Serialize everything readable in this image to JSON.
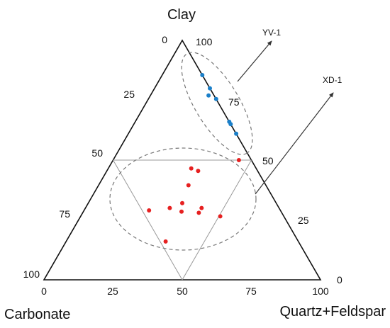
{
  "chart_data": {
    "type": "scatter",
    "subtype": "ternary",
    "vertices": {
      "top": "Clay",
      "left": "Carbonate",
      "right": "Quartz+Feldspar"
    },
    "ticks": {
      "clay_left_edge": [
        "0",
        "25",
        "50",
        "75",
        "100"
      ],
      "qf_right_edge": [
        "100",
        "75",
        "50",
        "25",
        "0"
      ],
      "carbonate_bottom_edge": [
        "0",
        "25",
        "50",
        "75",
        "100"
      ]
    },
    "series": [
      {
        "name": "YV-1",
        "color": "#1a7fc9",
        "points": [
          {
            "clay": 85.5,
            "qf": 14.5,
            "carbonate": 0
          },
          {
            "clay": 80,
            "qf": 20,
            "carbonate": 0
          },
          {
            "clay": 77,
            "qf": 21,
            "carbonate": 2
          },
          {
            "clay": 75.5,
            "qf": 24.5,
            "carbonate": 0
          },
          {
            "clay": 66,
            "qf": 34,
            "carbonate": 0
          },
          {
            "clay": 65,
            "qf": 35,
            "carbonate": 0
          },
          {
            "clay": 61,
            "qf": 39,
            "carbonate": 0
          }
        ]
      },
      {
        "name": "XD-1",
        "color": "#e62020",
        "points": [
          {
            "clay": 50,
            "qf": 45.5,
            "carbonate": 4.5
          },
          {
            "clay": 46.5,
            "qf": 30,
            "carbonate": 23.5
          },
          {
            "clay": 45.5,
            "qf": 33,
            "carbonate": 21.5
          },
          {
            "clay": 39.5,
            "qf": 32.5,
            "carbonate": 28
          },
          {
            "clay": 29,
            "qf": 23.5,
            "carbonate": 47.5
          },
          {
            "clay": 30,
            "qf": 30.5,
            "carbonate": 39.5
          },
          {
            "clay": 28.5,
            "qf": 35.5,
            "carbonate": 36
          },
          {
            "clay": 30,
            "qf": 42,
            "carbonate": 28
          },
          {
            "clay": 28,
            "qf": 42,
            "carbonate": 30
          },
          {
            "clay": 26.5,
            "qf": 50.5,
            "carbonate": 23
          },
          {
            "clay": 16,
            "qf": 36,
            "carbonate": 48
          },
          {
            "clay": 32,
            "qf": 34,
            "carbonate": 34
          }
        ]
      }
    ],
    "reference_lines": [
      "clay = 50",
      "inner triangle"
    ],
    "group_labels": [
      "YV-1",
      "XD-1"
    ]
  }
}
